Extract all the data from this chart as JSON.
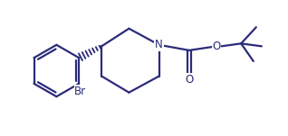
{
  "bg_color": "#ffffff",
  "line_color": "#2b2b7a",
  "line_width": 1.6,
  "text_color": "#2b2b7a",
  "font_size": 8.5,
  "label_N": "N",
  "label_O_ether": "O",
  "label_Br": "Br",
  "label_O_carbonyl": "O",
  "figsize": [
    3.18,
    1.51
  ],
  "dpi": 100,
  "xlim": [
    0.0,
    10.5
  ],
  "ylim": [
    1.5,
    6.5
  ]
}
